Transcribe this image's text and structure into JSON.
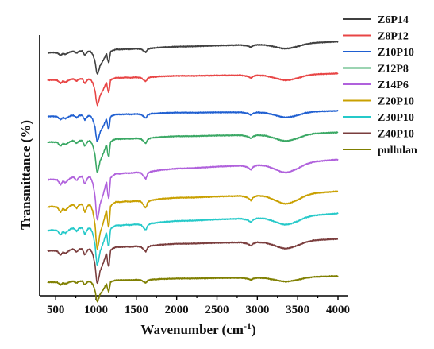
{
  "chart_data": {
    "type": "line",
    "title": "",
    "xlabel": "Wavenumber (cm",
    "xlabel_sup": "-1",
    "xlabel_close": ")",
    "ylabel": "Transmittance (%)",
    "xlim": [
      400,
      4000
    ],
    "xticks": [
      500,
      1000,
      1500,
      2000,
      2500,
      3000,
      3500,
      4000
    ],
    "grid": false,
    "legend_position": "top-right",
    "y_axis_ticks": false,
    "series": [
      {
        "name": "Z6P14",
        "color": "#404040"
      },
      {
        "name": "Z8P12",
        "color": "#e84545"
      },
      {
        "name": "Z10P10",
        "color": "#1f5fd1"
      },
      {
        "name": "Z12P8",
        "color": "#3aa864"
      },
      {
        "name": "Z14P6",
        "color": "#b061dc"
      },
      {
        "name": "Z20P10",
        "color": "#c9a000"
      },
      {
        "name": "Z30P10",
        "color": "#25c9c9"
      },
      {
        "name": "Z40P10",
        "color": "#7a3d3d"
      },
      {
        "name": "pullulan",
        "color": "#7f7f00"
      }
    ],
    "spectrum_profile": {
      "wavenumbers": [
        400,
        450,
        520,
        560,
        590,
        620,
        680,
        720,
        760,
        790,
        830,
        860,
        900,
        930,
        960,
        990,
        1000,
        1015,
        1030,
        1050,
        1080,
        1100,
        1130,
        1150,
        1160,
        1180,
        1200,
        1250,
        1300,
        1370,
        1420,
        1500,
        1560,
        1600,
        1620,
        1640,
        1680,
        1750,
        1800,
        2000,
        2200,
        2500,
        2800,
        2880,
        2920,
        2950,
        3000,
        3100,
        3200,
        3300,
        3350,
        3400,
        3500,
        3600,
        3700,
        3800,
        4000
      ],
      "transmittance": [
        0.92,
        0.93,
        0.91,
        0.8,
        0.88,
        0.84,
        0.93,
        0.95,
        0.87,
        0.94,
        0.95,
        0.78,
        0.92,
        0.93,
        0.8,
        0.5,
        0.25,
        0.0,
        0.12,
        0.35,
        0.5,
        0.62,
        0.82,
        0.5,
        0.45,
        0.88,
        0.92,
        0.97,
        0.96,
        0.97,
        0.96,
        0.97,
        0.95,
        0.85,
        0.82,
        0.93,
        0.97,
        0.98,
        0.99,
        1.0,
        0.99,
        0.99,
        0.98,
        0.94,
        0.88,
        0.94,
        0.97,
        0.95,
        0.88,
        0.8,
        0.78,
        0.79,
        0.85,
        0.93,
        0.97,
        0.98,
        0.99
      ]
    }
  }
}
